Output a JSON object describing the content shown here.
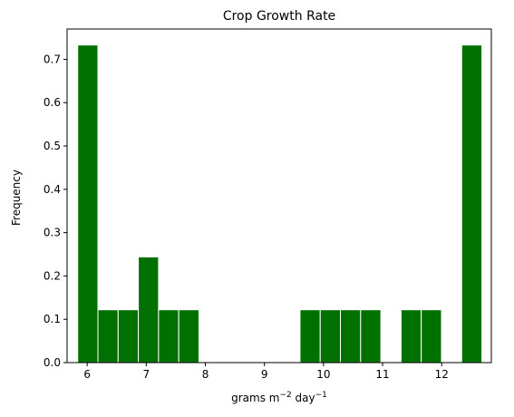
{
  "chart_data": {
    "type": "bar",
    "title": "Crop Growth Rate",
    "xlabel": {
      "base": "grams m",
      "exp1": "−2",
      "mid": " day",
      "exp2": "−1"
    },
    "ylabel": "Frequency",
    "xlim": [
      5.66,
      12.84
    ],
    "ylim": [
      0,
      0.77
    ],
    "x_ticks": [
      6,
      7,
      8,
      9,
      10,
      11,
      12
    ],
    "y_ticks": [
      0.0,
      0.1,
      0.2,
      0.3,
      0.4,
      0.5,
      0.6,
      0.7
    ],
    "bin_width": 0.342,
    "bins": [
      {
        "left": 5.84,
        "value": 0.733
      },
      {
        "left": 6.182,
        "value": 0.122
      },
      {
        "left": 6.524,
        "value": 0.122
      },
      {
        "left": 6.866,
        "value": 0.244
      },
      {
        "left": 7.208,
        "value": 0.122
      },
      {
        "left": 7.55,
        "value": 0.122
      },
      {
        "left": 7.892,
        "value": 0
      },
      {
        "left": 8.234,
        "value": 0
      },
      {
        "left": 8.576,
        "value": 0
      },
      {
        "left": 8.918,
        "value": 0
      },
      {
        "left": 9.26,
        "value": 0
      },
      {
        "left": 9.602,
        "value": 0.122
      },
      {
        "left": 9.944,
        "value": 0.122
      },
      {
        "left": 10.286,
        "value": 0.122
      },
      {
        "left": 10.628,
        "value": 0.122
      },
      {
        "left": 10.97,
        "value": 0
      },
      {
        "left": 11.312,
        "value": 0.122
      },
      {
        "left": 11.654,
        "value": 0.122
      },
      {
        "left": 11.996,
        "value": 0
      },
      {
        "left": 12.338,
        "value": 0.733
      }
    ],
    "bar_color": "#007000",
    "edge_color": "#ffffff",
    "grid": false,
    "legend": "none"
  }
}
